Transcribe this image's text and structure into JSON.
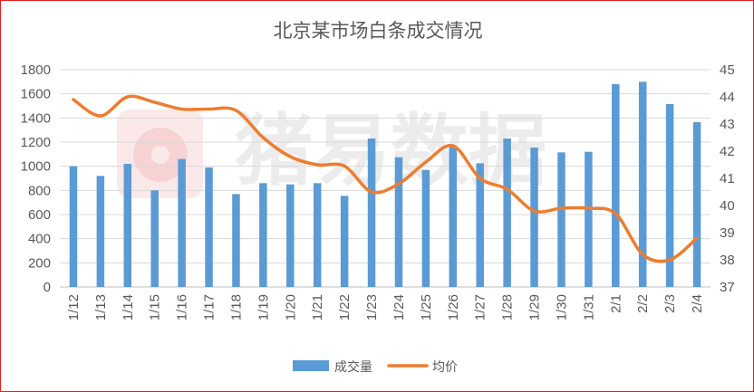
{
  "chart_data": {
    "type": "bar",
    "title": "北京某市场白条成交情况",
    "categories": [
      "1/12",
      "1/13",
      "1/14",
      "1/15",
      "1/16",
      "1/17",
      "1/18",
      "1/19",
      "1/20",
      "1/21",
      "1/22",
      "1/23",
      "1/24",
      "1/25",
      "1/26",
      "1/27",
      "1/28",
      "1/29",
      "1/30",
      "1/31",
      "2/1",
      "2/2",
      "2/3",
      "2/4"
    ],
    "series": [
      {
        "name": "成交量",
        "type": "bar",
        "axis": "left",
        "color": "#5b9bd5",
        "values": [
          1000,
          920,
          1020,
          800,
          1060,
          990,
          770,
          860,
          850,
          860,
          755,
          1230,
          1075,
          970,
          1160,
          1025,
          1230,
          1155,
          1115,
          1120,
          1680,
          1700,
          1515,
          1365
        ]
      },
      {
        "name": "均价",
        "type": "line",
        "axis": "right",
        "color": "#ed7d31",
        "values": [
          43.9,
          43.3,
          44.0,
          43.8,
          43.55,
          43.55,
          43.5,
          42.5,
          41.8,
          41.5,
          41.45,
          40.5,
          40.8,
          41.6,
          42.2,
          41.0,
          40.6,
          39.8,
          39.9,
          39.9,
          39.7,
          38.2,
          38.0,
          38.8
        ]
      }
    ],
    "y_left": {
      "min": 0,
      "max": 1800,
      "ticks": [
        "0",
        "200",
        "400",
        "600",
        "800",
        "1000",
        "1200",
        "1400",
        "1600",
        "1800"
      ]
    },
    "y_right": {
      "min": 37,
      "max": 45,
      "ticks": [
        "37",
        "38",
        "39",
        "40",
        "41",
        "42",
        "43",
        "44",
        "45"
      ]
    },
    "grid": true,
    "legend_position": "bottom",
    "watermark": "猪易数据"
  }
}
